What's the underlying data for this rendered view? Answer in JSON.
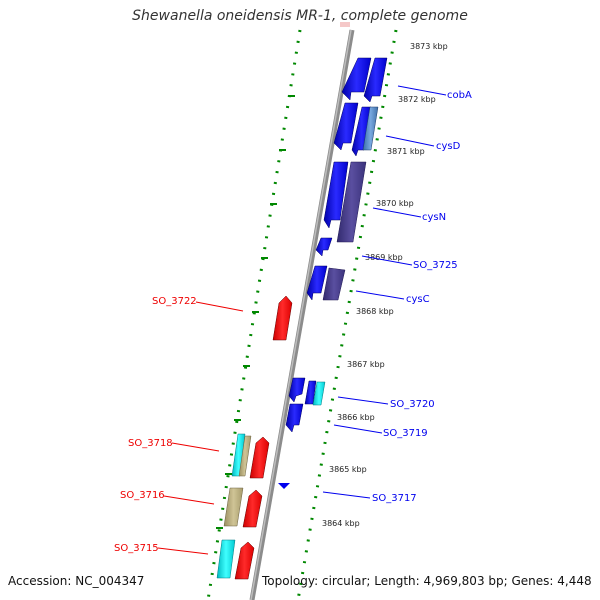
{
  "title": "Shewanella oneidensis MR-1, complete genome",
  "footer": {
    "accession": "Accession: NC_004347",
    "topology": "Topology: circular; Length: 4,969,803 bp; Genes: 4,448"
  },
  "ticks": [
    "3873 kbp",
    "3872 kbp",
    "3871 kbp",
    "3870 kbp",
    "3869 kbp",
    "3868 kbp",
    "3867 kbp",
    "3866 kbp",
    "3865 kbp",
    "3864 kbp"
  ],
  "genes_forward": [
    "cobA",
    "cysD",
    "cysN",
    "SO_3725",
    "cysC",
    "SO_3720",
    "SO_3719",
    "SO_3717"
  ],
  "genes_reverse": [
    "SO_3722",
    "SO_3718",
    "SO_3716",
    "SO_3715"
  ],
  "colors": {
    "forward": "#0000ee",
    "reverse": "#ff0000",
    "dark_purple": "#4a3f8a",
    "cyan": "#00e5ee",
    "khaki": "#b5a97a",
    "tick_green": "#008800",
    "backbone": "#888888"
  }
}
